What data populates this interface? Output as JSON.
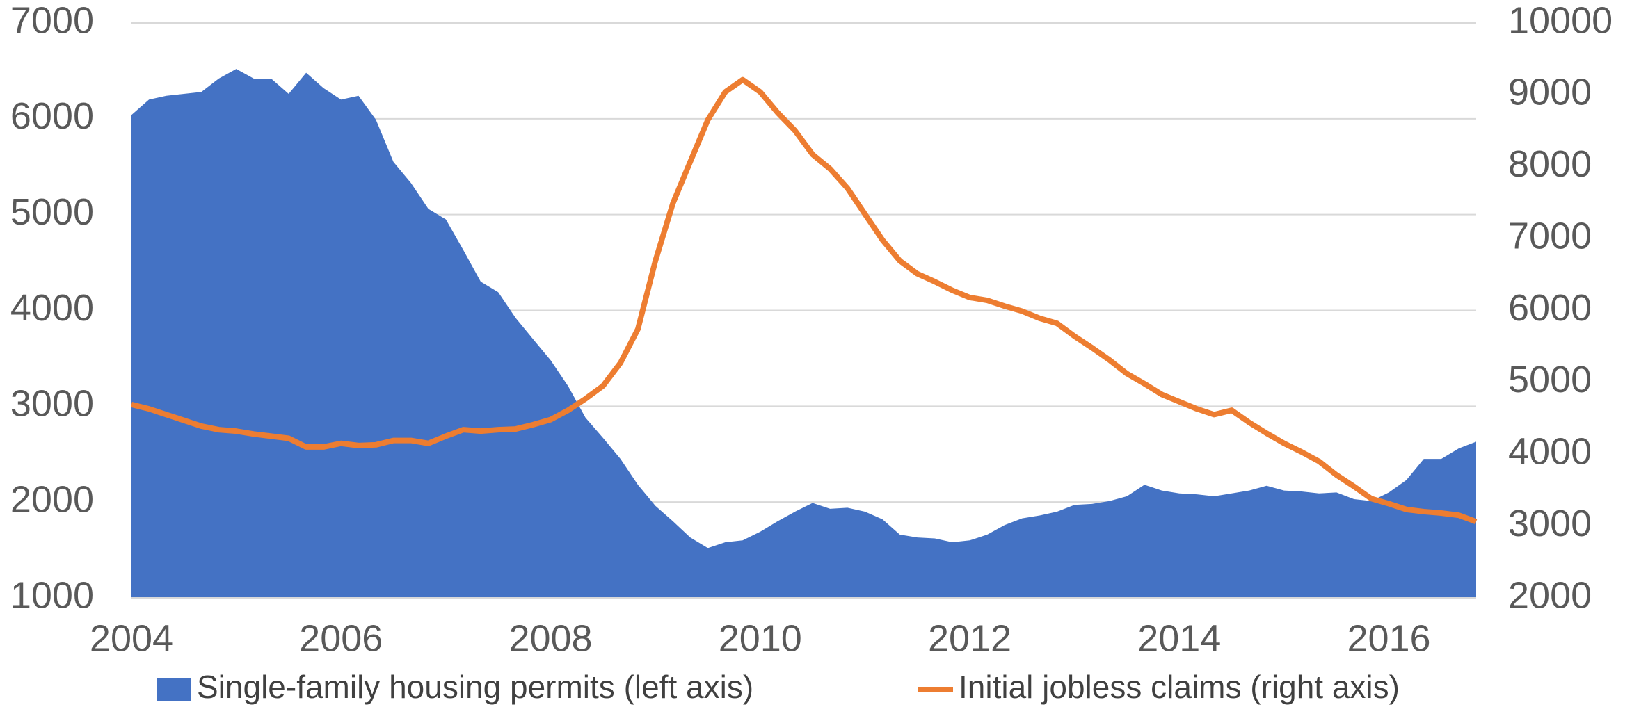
{
  "chart_data": {
    "type": "combo",
    "x": [
      2004.0,
      2004.167,
      2004.333,
      2004.5,
      2004.667,
      2004.833,
      2005.0,
      2005.167,
      2005.333,
      2005.5,
      2005.667,
      2005.833,
      2006.0,
      2006.167,
      2006.333,
      2006.5,
      2006.667,
      2006.833,
      2007.0,
      2007.167,
      2007.333,
      2007.5,
      2007.667,
      2007.833,
      2008.0,
      2008.167,
      2008.333,
      2008.5,
      2008.667,
      2008.833,
      2009.0,
      2009.167,
      2009.333,
      2009.5,
      2009.667,
      2009.833,
      2010.0,
      2010.167,
      2010.333,
      2010.5,
      2010.667,
      2010.833,
      2011.0,
      2011.167,
      2011.333,
      2011.5,
      2011.667,
      2011.833,
      2012.0,
      2012.167,
      2012.333,
      2012.5,
      2012.667,
      2012.833,
      2013.0,
      2013.167,
      2013.333,
      2013.5,
      2013.667,
      2013.833,
      2014.0,
      2014.167,
      2014.333,
      2014.5,
      2014.667,
      2014.833,
      2015.0,
      2015.167,
      2015.333,
      2015.5,
      2015.667,
      2015.833,
      2016.0,
      2016.167,
      2016.333,
      2016.5,
      2016.667,
      2016.833
    ],
    "series": [
      {
        "name": "Single-family housing permits (left axis)",
        "type": "area",
        "axis": "y",
        "color": "#4472c4",
        "values": [
          6040,
          6200,
          6240,
          6260,
          6280,
          6420,
          6520,
          6420,
          6420,
          6260,
          6480,
          6320,
          6200,
          6240,
          5990,
          5550,
          5330,
          5060,
          4950,
          4630,
          4300,
          4190,
          3920,
          3700,
          3480,
          3210,
          2880,
          2670,
          2450,
          2180,
          1960,
          1800,
          1630,
          1520,
          1580,
          1600,
          1690,
          1800,
          1900,
          1990,
          1930,
          1940,
          1900,
          1820,
          1660,
          1630,
          1620,
          1580,
          1600,
          1660,
          1760,
          1830,
          1860,
          1900,
          1970,
          1980,
          2010,
          2060,
          2180,
          2120,
          2090,
          2080,
          2060,
          2090,
          2120,
          2170,
          2120,
          2110,
          2090,
          2100,
          2030,
          2010,
          2100,
          2230,
          2450,
          2450,
          2560,
          2630
        ]
      },
      {
        "name": "Initial jobless claims (right axis)",
        "type": "line",
        "axis": "y2",
        "color": "#ed7d31",
        "values": [
          4690,
          4630,
          4550,
          4470,
          4390,
          4340,
          4320,
          4280,
          4250,
          4220,
          4100,
          4100,
          4150,
          4120,
          4130,
          4190,
          4190,
          4150,
          4250,
          4340,
          4320,
          4340,
          4350,
          4410,
          4480,
          4610,
          4770,
          4950,
          5270,
          5740,
          6690,
          7490,
          8070,
          8650,
          9040,
          9210,
          9040,
          8750,
          8500,
          8170,
          7970,
          7700,
          7340,
          6980,
          6690,
          6510,
          6400,
          6280,
          6180,
          6140,
          6060,
          5990,
          5890,
          5820,
          5640,
          5480,
          5310,
          5120,
          4980,
          4830,
          4730,
          4630,
          4550,
          4610,
          4440,
          4290,
          4150,
          4030,
          3900,
          3710,
          3550,
          3380,
          3310,
          3230,
          3200,
          3180,
          3150,
          3060
        ]
      }
    ],
    "xlim": [
      2004,
      2016.833
    ],
    "xticks": [
      2004,
      2006,
      2008,
      2010,
      2012,
      2014,
      2016
    ],
    "ylim": [
      1000,
      7000
    ],
    "yticks": [
      1000,
      2000,
      3000,
      4000,
      5000,
      6000,
      7000
    ],
    "y2lim": [
      2000,
      10000
    ],
    "y2ticks": [
      2000,
      3000,
      4000,
      5000,
      6000,
      7000,
      8000,
      9000,
      10000
    ],
    "grid": true,
    "legend": "bottom"
  }
}
